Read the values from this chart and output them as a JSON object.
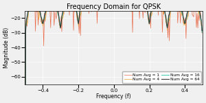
{
  "title": "Frequency Domain for QPSK",
  "xlabel": "Frequency (f)",
  "ylabel": "Magnitude (dB)",
  "ylim": [
    -65,
    -15
  ],
  "xlim": [
    -0.5,
    0.5
  ],
  "yticks": [
    -60,
    -50,
    -40,
    -30,
    -20
  ],
  "xticks": [
    -0.4,
    -0.2,
    0.0,
    0.2,
    0.4
  ],
  "legend_labels": [
    "Num Avg = 1",
    "Num Avg = 4",
    "Num Avg = 16",
    "Num Avg = 64"
  ],
  "colors": [
    "#e8603c",
    "#e8a83c",
    "#2ec9b0",
    "#2c2c2c"
  ],
  "linewidths": [
    0.5,
    0.6,
    0.7,
    0.8
  ],
  "num_avgs": [
    1,
    4,
    16,
    64
  ],
  "sps": 10,
  "N": 256,
  "background_color": "#f0f0f0",
  "title_fontsize": 7,
  "label_fontsize": 5.5,
  "tick_fontsize": 5,
  "legend_fontsize": 4.2
}
